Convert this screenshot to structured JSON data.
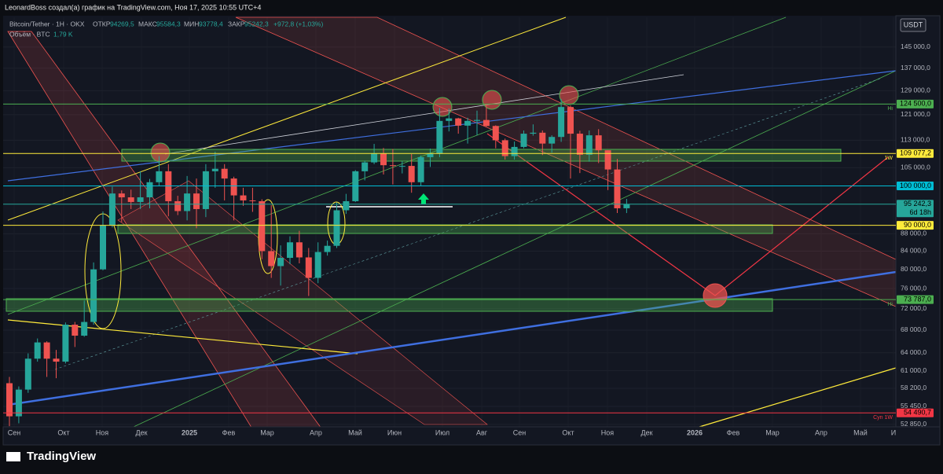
{
  "header": {
    "caption": "LeonardBoss создал(а) график на TradingView.com, Ноя 17, 2025 10:55 UTC+4"
  },
  "legend": {
    "symbol": "Bitcoin/Tether · 1Н · OKX",
    "open_label": "ОТКР",
    "open": "94269,5",
    "high_label": "МАКС",
    "high": "95584,3",
    "low_label": "МИН",
    "low": "93778,4",
    "close_label": "ЗАКР",
    "close": "95242,3",
    "change": "+972,8 (+1,03%)",
    "volume_label": "Объём · BTC",
    "volume": "1,79 K"
  },
  "currency": "USDT",
  "footer": {
    "logo": "TradingView"
  },
  "chart_data": {
    "type": "candlestick",
    "log_scale": true,
    "up_color": "#26a69a",
    "down_color": "#ef5350",
    "ylim": [
      52500,
      157000
    ],
    "yticks": [
      {
        "value": 145000,
        "label": "145 000,0"
      },
      {
        "value": 137000,
        "label": "137 000,0"
      },
      {
        "value": 129000,
        "label": "129 000,0"
      },
      {
        "value": 121000,
        "label": "121 000,0"
      },
      {
        "value": 113000,
        "label": "113 000,0"
      },
      {
        "value": 105000,
        "label": "105 000,0"
      },
      {
        "value": 88000,
        "label": "88 000,0"
      },
      {
        "value": 84000,
        "label": "84 000,0"
      },
      {
        "value": 80000,
        "label": "80 000,0"
      },
      {
        "value": 76000,
        "label": "76 000,0"
      },
      {
        "value": 72000,
        "label": "72 000,0"
      },
      {
        "value": 68000,
        "label": "68 000,0"
      },
      {
        "value": 64000,
        "label": "64 000,0"
      },
      {
        "value": 61000,
        "label": "61 000,0"
      },
      {
        "value": 58200,
        "label": "58 200,0"
      },
      {
        "value": 55450,
        "label": "55 450,0"
      },
      {
        "value": 52850,
        "label": "52 850,0"
      }
    ],
    "xticks": [
      "Сен",
      "Окт",
      "Ноя",
      "Дек",
      "2025",
      "Фев",
      "Мар",
      "Апр",
      "Май",
      "Июн",
      "Июл",
      "Авг",
      "Сен",
      "Окт",
      "Ноя",
      "Дек",
      "2026",
      "Фев",
      "Мар",
      "Апр",
      "Май",
      "И"
    ],
    "levels": [
      {
        "value": 124500,
        "label": "124 500,0",
        "color": "#4caf50",
        "note": "Hi"
      },
      {
        "value": 109077.2,
        "label": "109 077,2",
        "color": "#ffeb3b",
        "note": "1W"
      },
      {
        "value": 100000,
        "label": "100 000,0",
        "color": "#00bcd4"
      },
      {
        "value": 95242.3,
        "label": "95 242,3",
        "color": "#26a69a",
        "sub": "6d 18h"
      },
      {
        "value": 90000,
        "label": "90 000,0",
        "color": "#ffeb3b"
      },
      {
        "value": 73787,
        "label": "73 787,0",
        "color": "#4caf50",
        "note": "Hi"
      },
      {
        "value": 54490.7,
        "label": "54 490,7",
        "color": "#f23645",
        "note": "Cyn 1W"
      }
    ],
    "candles": [
      [
        59000,
        60000,
        52600,
        54000
      ],
      [
        54000,
        58500,
        53000,
        58000
      ],
      [
        58000,
        63900,
        57500,
        63000
      ],
      [
        63000,
        66500,
        62500,
        65800
      ],
      [
        65800,
        66000,
        60000,
        63000
      ],
      [
        63000,
        64500,
        59800,
        62500
      ],
      [
        62500,
        69400,
        62200,
        69000
      ],
      [
        69000,
        69500,
        65000,
        67000
      ],
      [
        67000,
        73600,
        66800,
        69500
      ],
      [
        69500,
        81500,
        69000,
        80000
      ],
      [
        80000,
        93400,
        79800,
        90000
      ],
      [
        90000,
        99800,
        89500,
        98000
      ],
      [
        98000,
        98800,
        90800,
        97000
      ],
      [
        97000,
        99000,
        94000,
        95800
      ],
      [
        95800,
        104000,
        94000,
        97000
      ],
      [
        97000,
        101900,
        94200,
        101000
      ],
      [
        101000,
        108300,
        100000,
        104000
      ],
      [
        104000,
        106000,
        92200,
        96000
      ],
      [
        96000,
        97400,
        92500,
        93500
      ],
      [
        93500,
        102700,
        91200,
        98000
      ],
      [
        98000,
        102000,
        89300,
        94000
      ],
      [
        94000,
        106000,
        92000,
        104000
      ],
      [
        104000,
        109600,
        99500,
        104700
      ],
      [
        104700,
        106000,
        96200,
        102000
      ],
      [
        102000,
        102500,
        91200,
        97500
      ],
      [
        97500,
        99500,
        94800,
        96200
      ],
      [
        96200,
        99500,
        93300,
        96000
      ],
      [
        96000,
        96500,
        82200,
        84000
      ],
      [
        84000,
        95000,
        78200,
        80700
      ],
      [
        80700,
        85300,
        76600,
        82500
      ],
      [
        82500,
        87400,
        81100,
        86000
      ],
      [
        86000,
        88700,
        81300,
        82600
      ],
      [
        82600,
        84700,
        74500,
        78200
      ],
      [
        78200,
        86000,
        77100,
        83800
      ],
      [
        83800,
        86400,
        83000,
        85200
      ],
      [
        85200,
        95700,
        84700,
        93700
      ],
      [
        93700,
        97900,
        92800,
        96000
      ],
      [
        96000,
        104300,
        95800,
        104000
      ],
      [
        104000,
        107000,
        101500,
        106500
      ],
      [
        106500,
        111900,
        106000,
        109000
      ],
      [
        109000,
        110700,
        103100,
        105700
      ],
      [
        105700,
        110400,
        100400,
        105500
      ],
      [
        105500,
        106800,
        103400,
        105500
      ],
      [
        105500,
        108900,
        98200,
        101000
      ],
      [
        101000,
        108500,
        100000,
        108000
      ],
      [
        108000,
        110500,
        105200,
        109000
      ],
      [
        109000,
        123200,
        108000,
        119000
      ],
      [
        119000,
        123000,
        115700,
        119800
      ],
      [
        119800,
        120000,
        115000,
        117500
      ],
      [
        117500,
        120000,
        112000,
        119000
      ],
      [
        119000,
        122300,
        114500,
        119300
      ],
      [
        119300,
        124500,
        117200,
        117400
      ],
      [
        117400,
        117600,
        110600,
        113000
      ],
      [
        113000,
        113500,
        107300,
        108300
      ],
      [
        108300,
        112600,
        107300,
        111000
      ],
      [
        111000,
        116000,
        110600,
        115000
      ],
      [
        115000,
        117900,
        114400,
        115300
      ],
      [
        115300,
        116000,
        108600,
        112000
      ],
      [
        112000,
        114500,
        109300,
        114000
      ],
      [
        114000,
        126200,
        112500,
        123500
      ],
      [
        123500,
        124000,
        102000,
        115000
      ],
      [
        115000,
        115900,
        103500,
        108700
      ],
      [
        108700,
        116000,
        106700,
        114500
      ],
      [
        114500,
        116400,
        106300,
        110000
      ],
      [
        110000,
        110000,
        98900,
        104500
      ],
      [
        104500,
        107500,
        93000,
        94200
      ],
      [
        94200,
        96600,
        93000,
        95242.3
      ]
    ]
  }
}
